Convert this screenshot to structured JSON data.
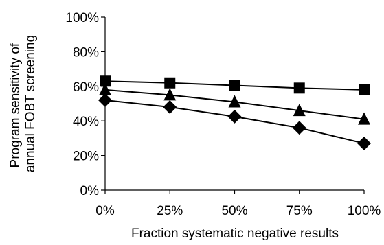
{
  "chart_data": {
    "type": "line",
    "title": "",
    "xlabel": "Fraction systematic negative results",
    "ylabel_lines": [
      "Program sensitivity of",
      "annual FOBT screening"
    ],
    "x_categories": [
      "0%",
      "25%",
      "50%",
      "75%",
      "100%"
    ],
    "x": [
      0,
      25,
      50,
      75,
      100
    ],
    "ylim": [
      0,
      100
    ],
    "y_ticks": [
      0,
      20,
      40,
      60,
      80,
      100
    ],
    "y_tick_labels": [
      "0%",
      "20%",
      "40%",
      "60%",
      "80%",
      "100%"
    ],
    "grid": false,
    "legend": "none",
    "series": [
      {
        "marker": "square",
        "color": "#000000",
        "values": [
          63,
          62,
          60.5,
          59,
          58
        ]
      },
      {
        "marker": "triangle",
        "color": "#000000",
        "values": [
          58,
          55,
          51,
          46,
          41
        ]
      },
      {
        "marker": "diamond",
        "color": "#000000",
        "values": [
          52,
          48,
          42.5,
          36,
          27
        ]
      }
    ]
  }
}
